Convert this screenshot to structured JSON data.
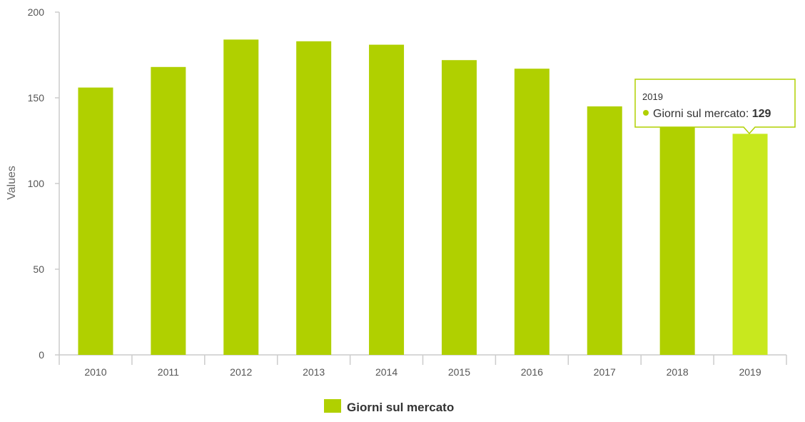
{
  "chart_data": {
    "type": "bar",
    "categories": [
      "2010",
      "2011",
      "2012",
      "2013",
      "2014",
      "2015",
      "2016",
      "2017",
      "2018",
      "2019"
    ],
    "series": [
      {
        "name": "Giorni sul mercato",
        "values": [
          156,
          168,
          184,
          183,
          181,
          172,
          167,
          145,
          136,
          129
        ],
        "color": "#b0d000"
      }
    ],
    "title": "",
    "xlabel": "",
    "ylabel": "Values",
    "ylim": [
      0,
      200
    ],
    "yticks": [
      0,
      50,
      100,
      150,
      200
    ],
    "grid": false,
    "legend_position": "bottom-center",
    "highlighted_category": "2019",
    "highlight_color": "#c8e81e",
    "tooltip": {
      "category": "2019",
      "series_label": "Giorni sul mercato",
      "value": "129"
    }
  }
}
